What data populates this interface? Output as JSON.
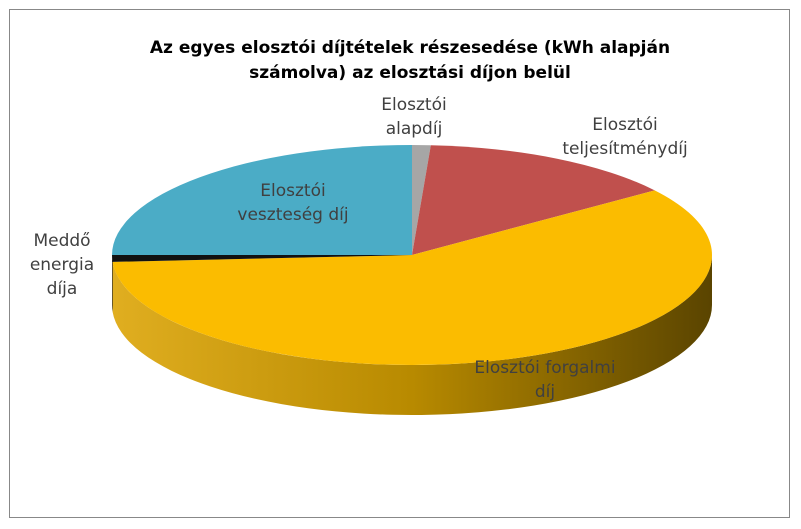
{
  "chart_data": {
    "type": "pie3d",
    "title": "Az egyes elosztói díjtételek részesedése (kWh alapján számolva) az elosztási díjon belül",
    "categories": [
      "Elosztói alapdíj",
      "Elosztói teljesítménydíj",
      "Elosztói forgalmi díj",
      "Meddő energia díja",
      "Elosztói veszteség díj"
    ],
    "values": [
      1,
      14,
      59,
      1,
      25
    ],
    "colors": [
      "#a6a6a6",
      "#c0504d",
      "#fbbc00",
      "#111111",
      "#4bacc6"
    ]
  }
}
